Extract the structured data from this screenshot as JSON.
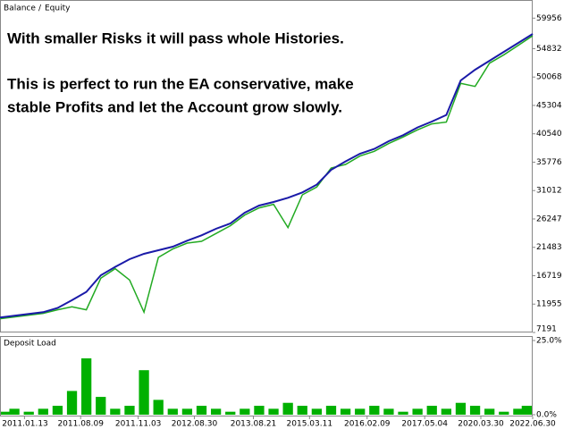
{
  "chart_data": [
    {
      "type": "line",
      "annotations": [
        "With smaller Risks it will pass whole Histories.",
        "This is perfect to run the EA conservative, make",
        "stable Profits and let the Account grow slowly."
      ],
      "legend_separator": "/",
      "xlim": [
        0,
        37
      ],
      "ylim": [
        7191,
        63000
      ],
      "yticks": [
        59956,
        54832,
        50068,
        45304,
        40540,
        35776,
        31012,
        26247,
        21483,
        16719,
        11955,
        7191
      ],
      "grid": false,
      "series": [
        {
          "name": "Balance",
          "color": "#1a1aa8",
          "values": [
            9700,
            10000,
            10300,
            10600,
            11300,
            12600,
            14000,
            16800,
            18200,
            19500,
            20400,
            21000,
            21600,
            22600,
            23500,
            24600,
            25500,
            27300,
            28500,
            29100,
            29800,
            30700,
            32000,
            34500,
            35900,
            37200,
            38000,
            39300,
            40300,
            41600,
            42600,
            43700,
            49500,
            51300,
            52800,
            54300,
            55800,
            57300
          ]
        },
        {
          "name": "Equity",
          "color": "#22aa22",
          "values": [
            9500,
            9800,
            10100,
            10400,
            11000,
            11500,
            11000,
            16300,
            17900,
            16000,
            10600,
            19800,
            21200,
            22200,
            22500,
            23800,
            25100,
            26900,
            28100,
            28700,
            24800,
            30300,
            31600,
            34800,
            35400,
            36800,
            37600,
            38900,
            40000,
            41200,
            42200,
            42500,
            49000,
            48500,
            52400,
            53800,
            55400,
            57000
          ]
        }
      ]
    },
    {
      "type": "bar",
      "title": "Deposit Load",
      "color": "#00b000",
      "xlim": [
        0,
        37
      ],
      "ylim": [
        0,
        25
      ],
      "yticks": [
        {
          "value": 25,
          "label": "25.0%"
        },
        {
          "value": 0,
          "label": "0.0%"
        }
      ],
      "xticks": [
        {
          "value": 1.7,
          "label": "2011.01.13"
        },
        {
          "value": 5.6,
          "label": "2011.08.09"
        },
        {
          "value": 9.6,
          "label": "2011.11.03"
        },
        {
          "value": 13.5,
          "label": "2012.08.30"
        },
        {
          "value": 17.6,
          "label": "2013.08.21"
        },
        {
          "value": 21.5,
          "label": "2015.03.11"
        },
        {
          "value": 25.5,
          "label": "2016.02.09"
        },
        {
          "value": 29.5,
          "label": "2017.05.04"
        },
        {
          "value": 33.4,
          "label": "2020.03.30"
        },
        {
          "value": 37,
          "label": "2022.06.30"
        }
      ],
      "values": [
        1,
        2,
        1,
        2,
        3,
        8,
        19,
        6,
        2,
        3,
        15,
        5,
        2,
        2,
        3,
        2,
        1,
        2,
        3,
        2,
        4,
        3,
        2,
        3,
        2,
        2,
        3,
        2,
        1,
        2,
        3,
        2,
        4,
        3,
        2,
        1,
        2,
        3
      ]
    }
  ]
}
